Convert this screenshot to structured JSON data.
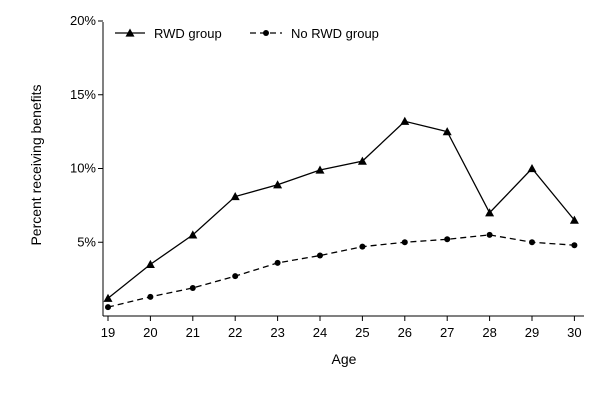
{
  "chart_data": {
    "type": "line",
    "xlabel": "Age",
    "ylabel": "Percent receiving benefits",
    "x": [
      19,
      20,
      21,
      22,
      23,
      24,
      25,
      26,
      27,
      28,
      29,
      30
    ],
    "xlim": [
      19,
      30
    ],
    "ylim": [
      0,
      20
    ],
    "yticks": [
      5,
      10,
      15,
      20
    ],
    "ytick_labels": [
      "5%",
      "10%",
      "15%",
      "20%"
    ],
    "grid": false,
    "legend": "top-left",
    "series": [
      {
        "name": "RWD group",
        "marker": "triangle",
        "line": "solid",
        "values": [
          1.2,
          3.5,
          5.5,
          8.1,
          8.9,
          9.9,
          10.5,
          13.2,
          12.5,
          7.0,
          10.0,
          6.5
        ]
      },
      {
        "name": "No RWD group",
        "marker": "circle",
        "line": "dashed",
        "values": [
          0.6,
          1.3,
          1.9,
          2.7,
          3.6,
          4.1,
          4.7,
          5.0,
          5.2,
          5.5,
          5.0,
          4.8
        ]
      }
    ]
  }
}
